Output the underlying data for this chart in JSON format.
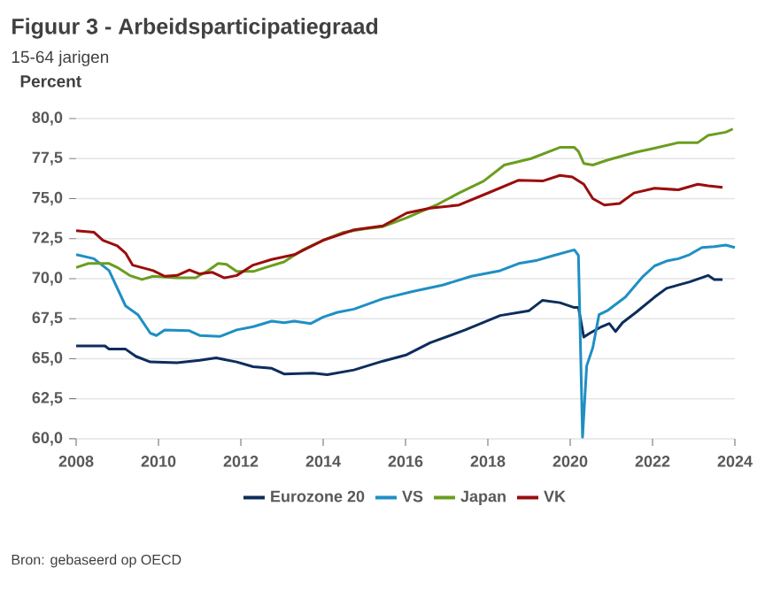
{
  "chart_data": {
    "type": "line",
    "title": "Figuur 3 - Arbeidsparticipatiegraad",
    "subtitle": "15-64 jarigen",
    "ylabel": "Percent",
    "annotations": [
      "Bron: gebaseerd op OECD"
    ],
    "xlim": [
      2008,
      2024
    ],
    "xticks": [
      2008,
      2010,
      2012,
      2014,
      2016,
      2018,
      2020,
      2022,
      2024
    ],
    "ylim": [
      60,
      80
    ],
    "yticks": [
      {
        "value": 60,
        "label": "60,0"
      },
      {
        "value": 62.5,
        "label": "62,5"
      },
      {
        "value": 65,
        "label": "65,0"
      },
      {
        "value": 67.5,
        "label": "67,5"
      },
      {
        "value": 70,
        "label": "70,0"
      },
      {
        "value": 72.5,
        "label": "72,5"
      },
      {
        "value": 75,
        "label": "75,0"
      },
      {
        "value": 77.5,
        "label": "77,5"
      },
      {
        "value": 80,
        "label": "80,0"
      }
    ],
    "grid": "y",
    "legend": "bottom",
    "series": [
      {
        "name": "Eurozone 20",
        "color": "#0d2d5c",
        "x": [
          2008,
          2008.7,
          2008.8,
          2009.2,
          2009.45,
          2009.8,
          2010.45,
          2011,
          2011.4,
          2011.9,
          2012.3,
          2012.75,
          2013.05,
          2013.75,
          2014.1,
          2014.75,
          2015.45,
          2016.03,
          2016.6,
          2017.45,
          2018.3,
          2019,
          2019.33,
          2019.75,
          2020.1,
          2020.2,
          2020.33,
          2020.48,
          2020.76,
          2020.95,
          2021.1,
          2021.27,
          2021.6,
          2022.05,
          2022.34,
          2022.9,
          2023.35,
          2023.5,
          2023.7
        ],
        "values": [
          65.8,
          65.8,
          65.6,
          65.6,
          65.15,
          64.8,
          64.75,
          64.9,
          65.05,
          64.8,
          64.5,
          64.4,
          64.05,
          64.1,
          64.0,
          64.3,
          64.85,
          65.25,
          66.0,
          66.8,
          67.7,
          68.0,
          68.65,
          68.5,
          68.2,
          68.2,
          66.35,
          66.6,
          67.0,
          67.2,
          66.7,
          67.25,
          67.9,
          68.85,
          69.4,
          69.8,
          70.2,
          69.95,
          69.95
        ]
      },
      {
        "name": "VS",
        "color": "#1f8fc4",
        "x": [
          2008,
          2008.43,
          2008.8,
          2009,
          2009.2,
          2009.5,
          2009.8,
          2009.95,
          2010.15,
          2010.75,
          2011,
          2011.5,
          2011.9,
          2012.3,
          2012.75,
          2013.05,
          2013.3,
          2013.7,
          2014,
          2014.35,
          2014.75,
          2015.45,
          2016.17,
          2016.9,
          2017.6,
          2018.3,
          2018.75,
          2019.2,
          2019.6,
          2020.1,
          2020.2,
          2020.3,
          2020.4,
          2020.55,
          2020.7,
          2020.9,
          2021.34,
          2021.77,
          2022.05,
          2022.34,
          2022.63,
          2022.9,
          2023.2,
          2023.5,
          2023.78,
          2024
        ],
        "values": [
          71.5,
          71.25,
          70.5,
          69.4,
          68.3,
          67.75,
          66.6,
          66.45,
          66.8,
          66.75,
          66.45,
          66.4,
          66.8,
          67.0,
          67.35,
          67.25,
          67.35,
          67.2,
          67.6,
          67.9,
          68.1,
          68.75,
          69.2,
          69.6,
          70.15,
          70.5,
          70.95,
          71.15,
          71.45,
          71.8,
          71.45,
          60.1,
          64.55,
          65.7,
          67.75,
          68.0,
          68.85,
          70.15,
          70.8,
          71.1,
          71.25,
          71.5,
          71.95,
          72.0,
          72.1,
          71.95
        ]
      },
      {
        "name": "Japan",
        "color": "#6a9e1f",
        "x": [
          2008,
          2008.3,
          2008.8,
          2009,
          2009.3,
          2009.6,
          2009.87,
          2010.45,
          2010.9,
          2011.2,
          2011.45,
          2011.65,
          2011.9,
          2012.3,
          2012.6,
          2013.05,
          2013.5,
          2014,
          2014.5,
          2015,
          2015.45,
          2016.03,
          2016.75,
          2017.3,
          2017.9,
          2018.4,
          2019.05,
          2019.75,
          2020.1,
          2020.2,
          2020.33,
          2020.55,
          2020.9,
          2021.6,
          2022.05,
          2022.63,
          2023.1,
          2023.35,
          2023.78,
          2023.95
        ],
        "values": [
          70.7,
          70.95,
          70.95,
          70.7,
          70.2,
          69.95,
          70.15,
          70.05,
          70.05,
          70.5,
          70.95,
          70.9,
          70.45,
          70.45,
          70.7,
          71.05,
          71.8,
          72.4,
          72.9,
          73.1,
          73.25,
          73.8,
          74.6,
          75.35,
          76.1,
          77.1,
          77.5,
          78.2,
          78.2,
          77.95,
          77.2,
          77.1,
          77.4,
          77.9,
          78.15,
          78.5,
          78.5,
          78.95,
          79.15,
          79.35
        ]
      },
      {
        "name": "VK",
        "color": "#9b0d0d",
        "x": [
          2008,
          2008.43,
          2008.65,
          2009,
          2009.2,
          2009.37,
          2009.87,
          2010.15,
          2010.45,
          2010.75,
          2011,
          2011.3,
          2011.6,
          2011.9,
          2012.3,
          2012.75,
          2013.3,
          2014,
          2014.75,
          2015.45,
          2016.03,
          2016.6,
          2017.3,
          2018.05,
          2018.75,
          2019.33,
          2019.75,
          2020.05,
          2020.33,
          2020.55,
          2020.83,
          2021.2,
          2021.55,
          2022.05,
          2022.63,
          2023.1,
          2023.35,
          2023.7
        ],
        "values": [
          73.0,
          72.9,
          72.4,
          72.05,
          71.6,
          70.85,
          70.5,
          70.15,
          70.2,
          70.55,
          70.3,
          70.4,
          70.05,
          70.2,
          70.85,
          71.2,
          71.5,
          72.4,
          73.05,
          73.3,
          74.1,
          74.4,
          74.6,
          75.4,
          76.15,
          76.1,
          76.45,
          76.35,
          75.9,
          75.0,
          74.6,
          74.7,
          75.35,
          75.65,
          75.55,
          75.9,
          75.8,
          75.7
        ]
      }
    ]
  }
}
